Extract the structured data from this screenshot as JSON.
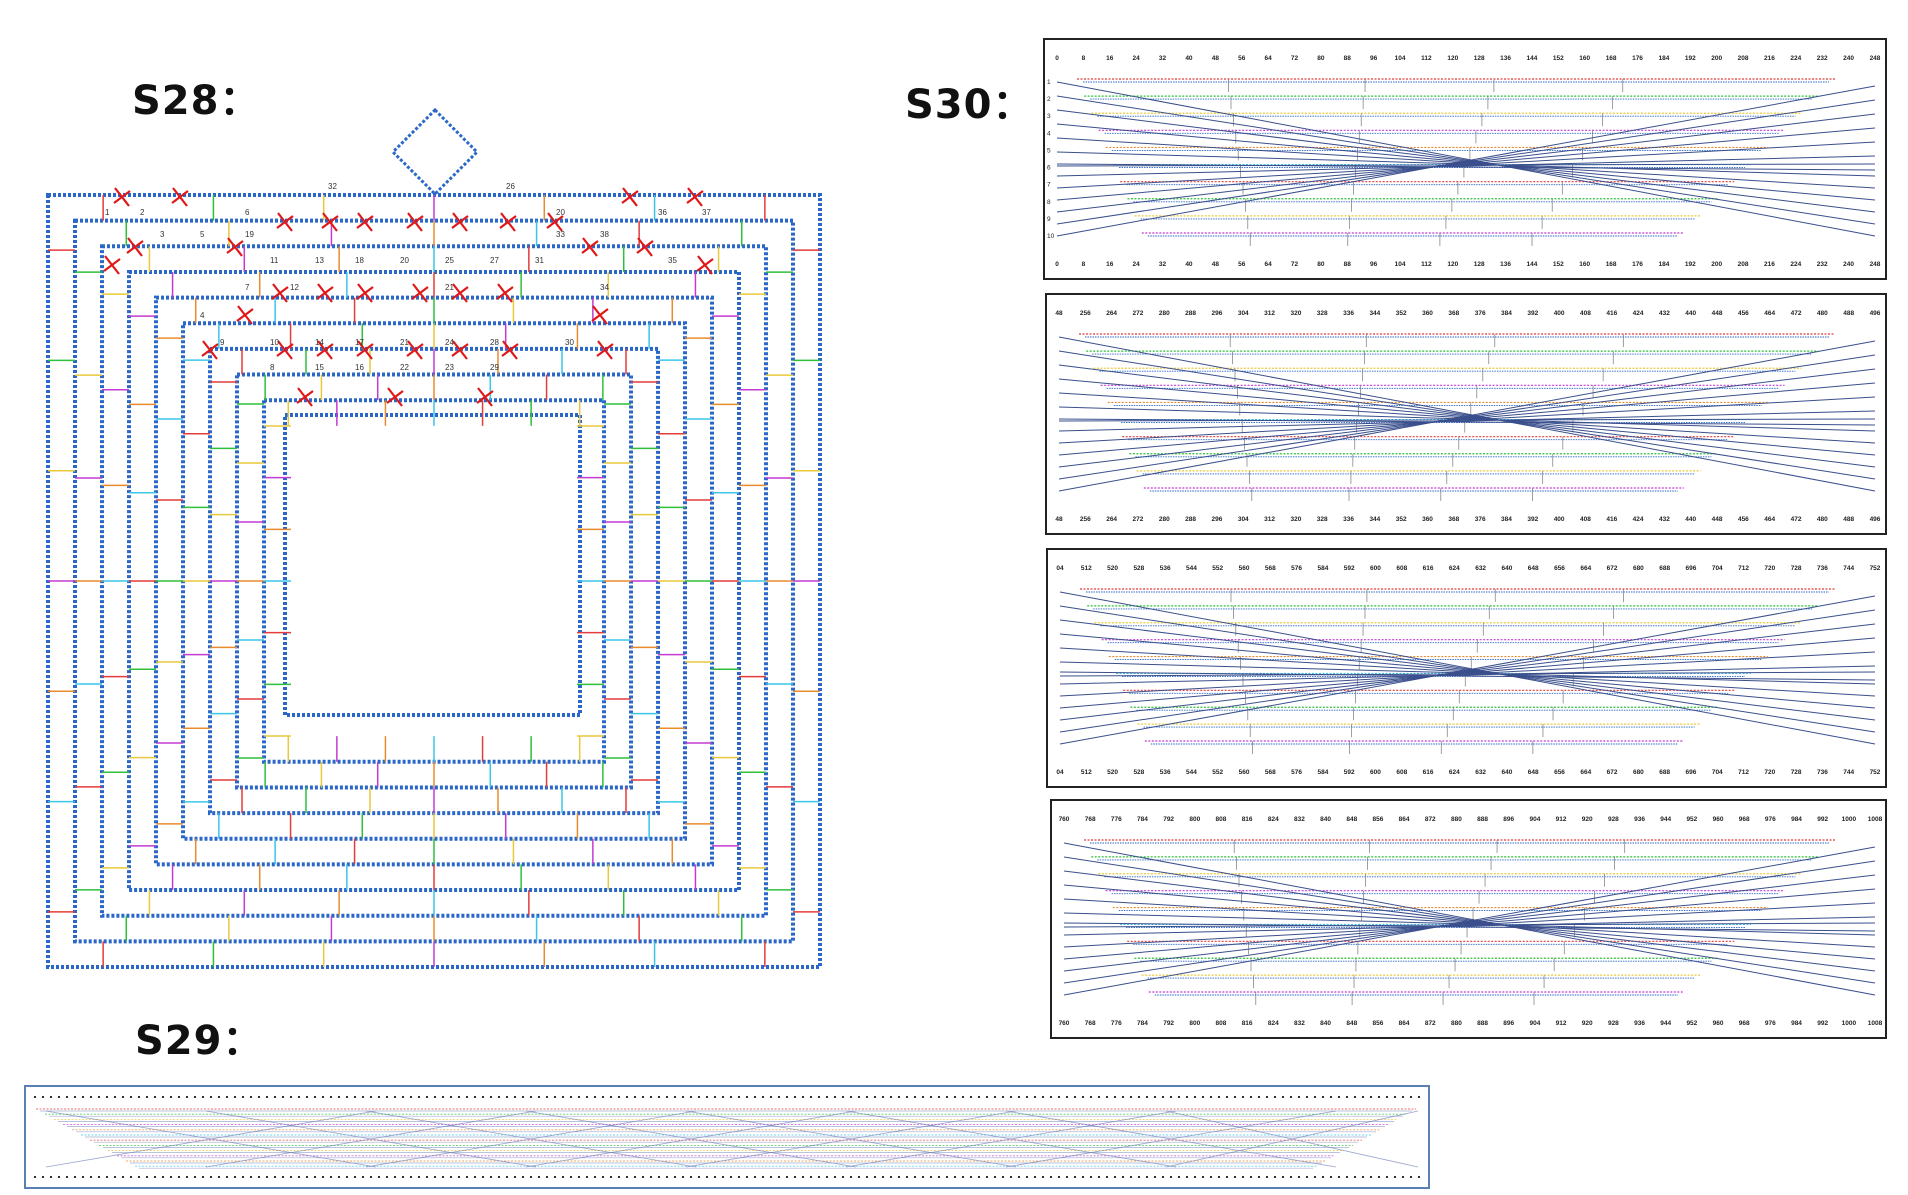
{
  "labels": {
    "s28": "S28：",
    "s29": "S29：",
    "s30": "S30："
  },
  "colors": {
    "scaffold": "#2a67c8",
    "staple_palette": [
      "#e23b3b",
      "#2fbf3a",
      "#e8c93b",
      "#c43bd1",
      "#e88b2e",
      "#3bc6e8"
    ],
    "marker": "#e01818",
    "track_line": "#3a4f8c",
    "frame_s29": "#5a7fb3"
  },
  "s28": {
    "helix_numbers_top": [
      "32",
      "26"
    ],
    "helix_numbers": [
      "1",
      "2",
      "6",
      "20",
      "36",
      "37",
      "3",
      "5",
      "19",
      "33",
      "38",
      "11",
      "13",
      "18",
      "20",
      "25",
      "27",
      "31",
      "35",
      "7",
      "12",
      "21",
      "34",
      "4",
      "9",
      "10",
      "14",
      "17",
      "21",
      "24",
      "28",
      "30",
      "8",
      "15",
      "16",
      "22",
      "23",
      "29"
    ]
  },
  "s30": {
    "panels": [
      {
        "ticks": [
          "0",
          "8",
          "16",
          "24",
          "32",
          "40",
          "48",
          "56",
          "64",
          "72",
          "80",
          "88",
          "96",
          "104",
          "112",
          "120",
          "128",
          "136",
          "144",
          "152",
          "160",
          "168",
          "176",
          "184",
          "192",
          "200",
          "208",
          "216",
          "224",
          "232",
          "240",
          "248"
        ],
        "row_labels": [
          "1",
          "2",
          "3",
          "4",
          "5",
          "6",
          "7",
          "8",
          "9",
          "10"
        ]
      },
      {
        "ticks": [
          "48",
          "256",
          "264",
          "272",
          "280",
          "288",
          "296",
          "304",
          "312",
          "320",
          "328",
          "336",
          "344",
          "352",
          "360",
          "368",
          "376",
          "384",
          "392",
          "400",
          "408",
          "416",
          "424",
          "432",
          "440",
          "448",
          "456",
          "464",
          "472",
          "480",
          "488",
          "496"
        ],
        "row_labels": []
      },
      {
        "ticks": [
          "04",
          "512",
          "520",
          "528",
          "536",
          "544",
          "552",
          "560",
          "568",
          "576",
          "584",
          "592",
          "600",
          "608",
          "616",
          "624",
          "632",
          "640",
          "648",
          "656",
          "664",
          "672",
          "680",
          "688",
          "696",
          "704",
          "712",
          "720",
          "728",
          "736",
          "744",
          "752"
        ],
        "row_labels": []
      },
      {
        "ticks": [
          "760",
          "768",
          "776",
          "784",
          "792",
          "800",
          "808",
          "816",
          "824",
          "832",
          "840",
          "848",
          "856",
          "864",
          "872",
          "880",
          "888",
          "896",
          "904",
          "912",
          "920",
          "928",
          "936",
          "944",
          "952",
          "960",
          "968",
          "976",
          "984",
          "992",
          "1000",
          "1008"
        ],
        "row_labels": []
      }
    ]
  }
}
